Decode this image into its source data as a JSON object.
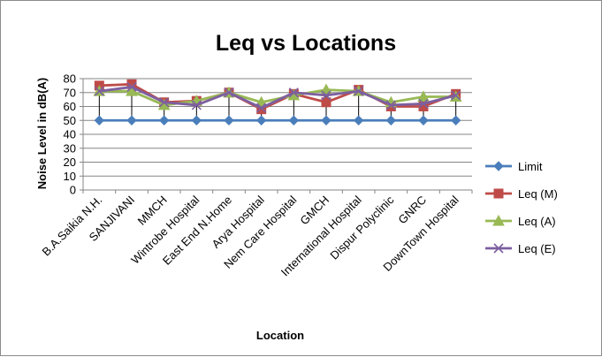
{
  "chart_data": {
    "type": "line",
    "title": "Leq vs Locations",
    "xlabel": "Location",
    "ylabel": "Noise Level in dB(A)",
    "ylim": [
      0,
      80
    ],
    "yticks": [
      0,
      10,
      20,
      30,
      40,
      50,
      60,
      70,
      80
    ],
    "grid": true,
    "legend_position": "right",
    "categories": [
      "B.A.Saikia N.H.",
      "SANJIVANI",
      "MMCH",
      "Wintrobe Hospital",
      "East End N.Home",
      "Arya Hospital",
      "Nem Care Hospital",
      "GMCH",
      "International Hospital",
      "Dispur Polyclinic",
      "GNRC",
      "DownTown Hospital"
    ],
    "series": [
      {
        "name": "Limit",
        "color": "#4a7ebb",
        "marker": "diamond",
        "values": [
          50,
          50,
          50,
          50,
          50,
          50,
          50,
          50,
          50,
          50,
          50,
          50
        ]
      },
      {
        "name": "Leq (M)",
        "color": "#be4b48",
        "marker": "square",
        "values": [
          75,
          76,
          63,
          64,
          70,
          58,
          69,
          63,
          72,
          60,
          60,
          69
        ]
      },
      {
        "name": "Leq (A)",
        "color": "#98b954",
        "marker": "triangle",
        "values": [
          71,
          71,
          61,
          64,
          70,
          63,
          68,
          72,
          71,
          63,
          67,
          67
        ]
      },
      {
        "name": "Leq (E)",
        "color": "#7d5fa0",
        "marker": "x",
        "values": [
          71,
          74,
          63,
          61,
          70,
          59,
          70,
          68,
          71,
          61,
          62,
          68
        ]
      }
    ],
    "error_bars": {
      "from_series": "Limit",
      "to_series": "Leq (E)",
      "color": "#000000"
    }
  }
}
